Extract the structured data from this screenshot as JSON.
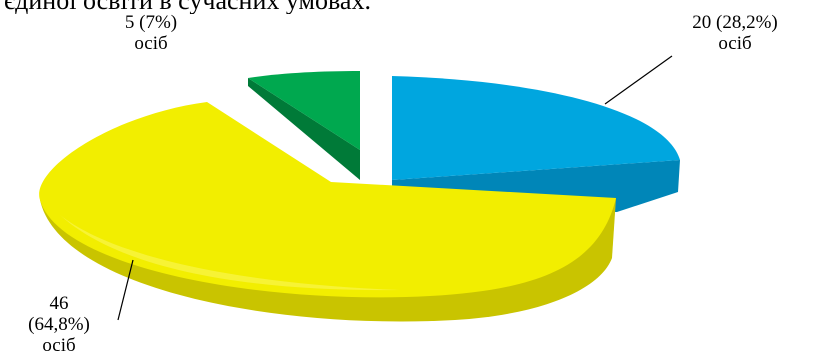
{
  "page": {
    "top_text": "єдиної освіти в сучасних умовах."
  },
  "chart_data": {
    "type": "pie",
    "style": "3d-exploded",
    "slices": [
      {
        "value": 20,
        "percent": "28,2%",
        "count_label": "20",
        "unit": "осіб",
        "color": "#00a6df",
        "side_color": "#0086b8"
      },
      {
        "value": 46,
        "percent": "64,8%",
        "count_label": "46",
        "unit": "осіб",
        "color": "#f2ee00",
        "side_color": "#c9c400"
      },
      {
        "value": 5,
        "percent": "7%",
        "count_label": "5",
        "unit": "осіб",
        "color": "#00a84f",
        "side_color": "#007a38"
      }
    ],
    "labels": {
      "blue": {
        "line1": "20 (28,2%)",
        "line2": "осіб"
      },
      "yellow": {
        "line1": "46",
        "line2": "(64,8%)",
        "line3": "осіб"
      },
      "green": {
        "line1": "5 (7%)",
        "line2": "осіб"
      }
    }
  }
}
